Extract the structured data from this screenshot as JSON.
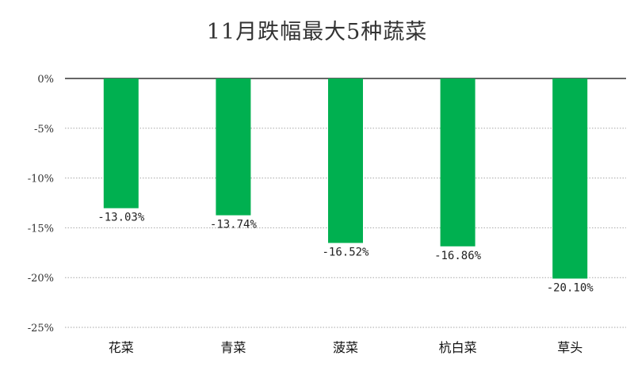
{
  "chart_data": {
    "type": "bar",
    "title": "11月跌幅最大5种蔬菜",
    "categories": [
      "花菜",
      "青菜",
      "菠菜",
      "杭白菜",
      "草头"
    ],
    "values": [
      -13.03,
      -13.74,
      -16.52,
      -16.86,
      -20.1
    ],
    "data_labels": [
      "-13.03%",
      "-13.74%",
      "-16.52%",
      "-16.86%",
      "-20.10%"
    ],
    "y_ticks": [
      "0%",
      "-5%",
      "-10%",
      "-15%",
      "-20%",
      "-25%"
    ],
    "ylim": [
      -25,
      0
    ],
    "grid": true,
    "legend": "none",
    "bar_color": "#00b050"
  }
}
